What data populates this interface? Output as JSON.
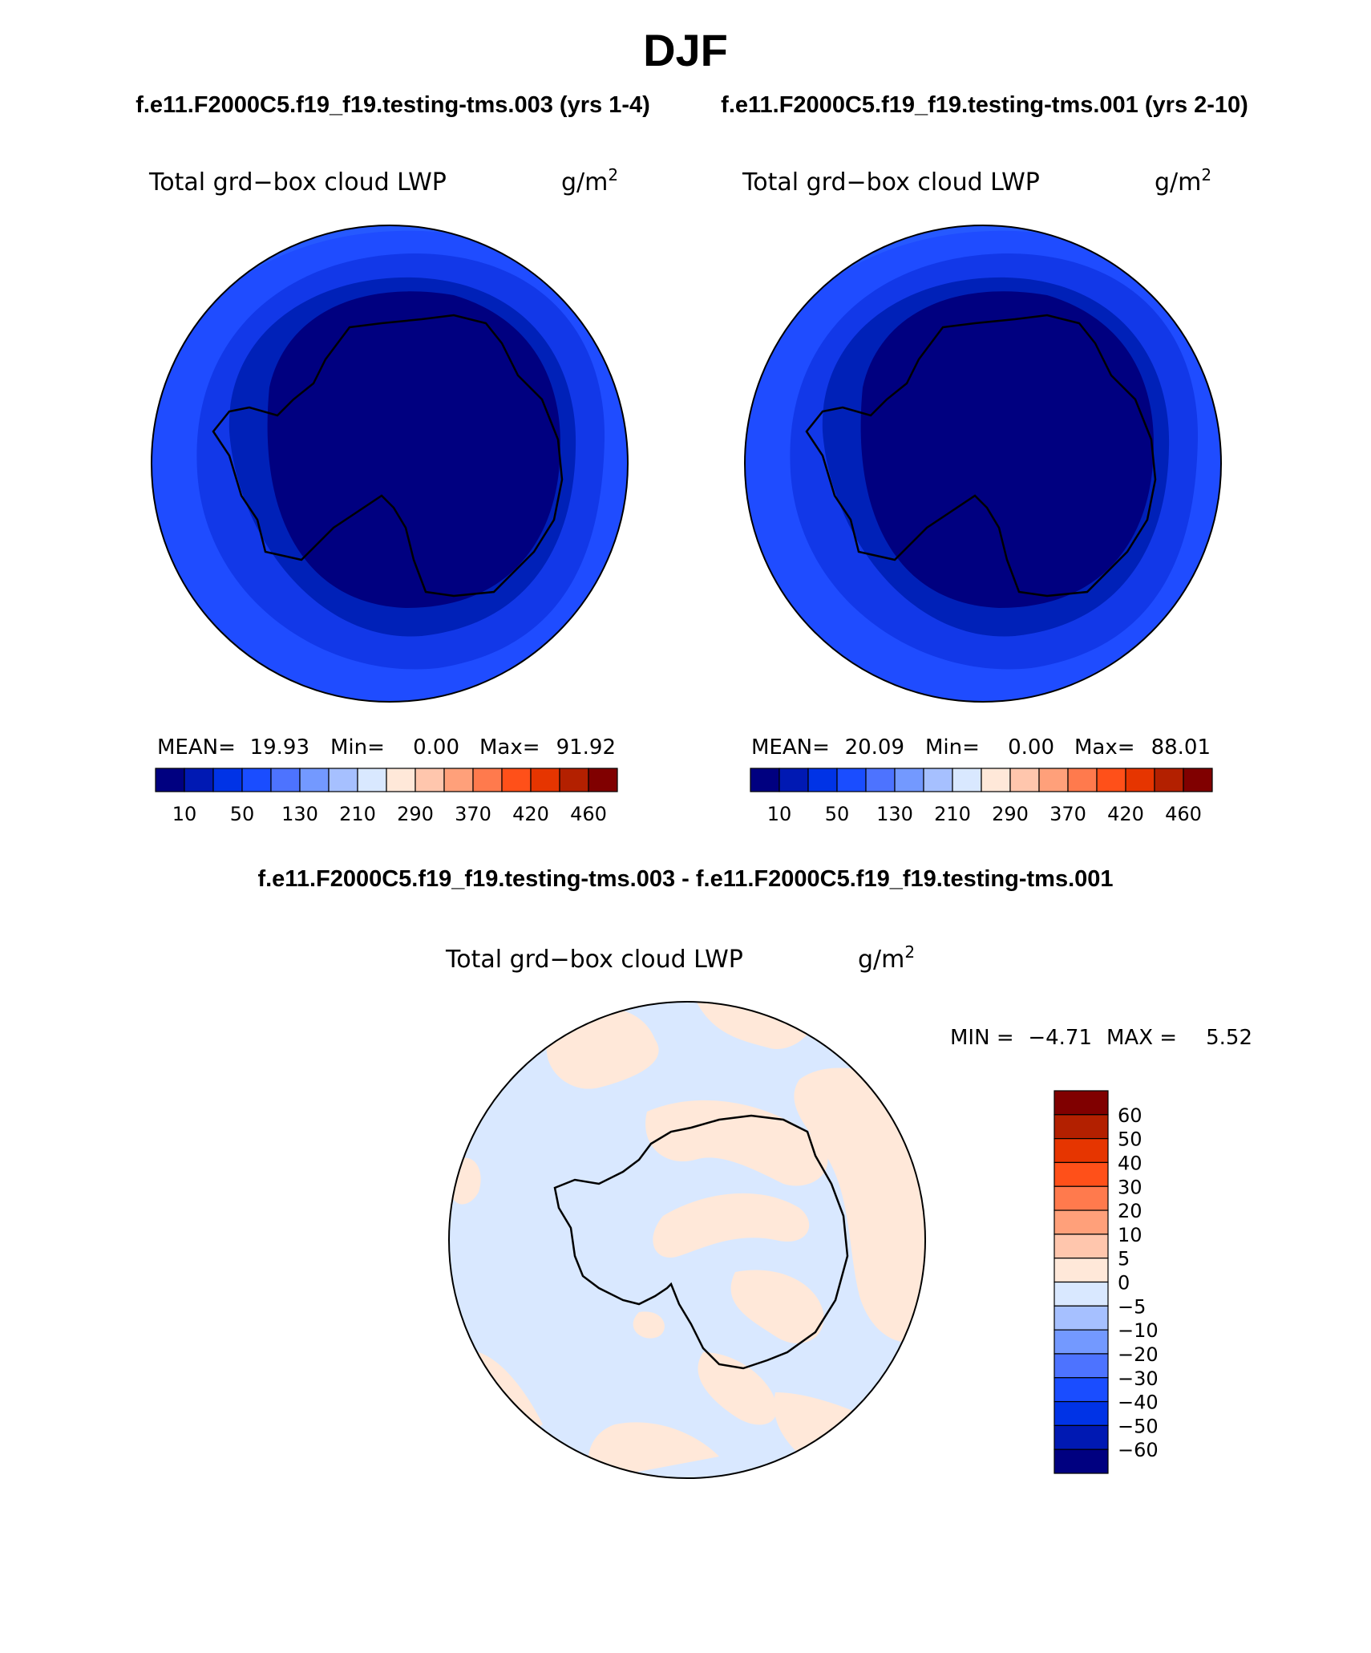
{
  "season": "DJF",
  "case_labels": {
    "left": "f.e11.F2000C5.f19_f19.testing-tms.003 (yrs 1-4)",
    "right": "f.e11.F2000C5.f19_f19.testing-tms.001 (yrs 2-10)",
    "difference": "f.e11.F2000C5.f19_f19.testing-tms.003 - f.e11.F2000C5.f19_f19.testing-tms.001"
  },
  "variable": "Total grd−box cloud LWP",
  "units": "g/m",
  "units_exponent": "2",
  "panels": [
    {
      "mean_label": "MEAN=",
      "mean": "19.93",
      "min_label": "Min=",
      "min": "0.00",
      "max_label": "Max=",
      "max": "91.92"
    },
    {
      "mean_label": "MEAN=",
      "mean": "20.09",
      "min_label": "Min=",
      "min": "0.00",
      "max_label": "Max=",
      "max": "88.01"
    }
  ],
  "diff_stats": {
    "min_label": "MIN =",
    "min": "−4.71",
    "max_label": "MAX =",
    "max": "5.52"
  },
  "abs_colorbar": {
    "colors": [
      "#000080",
      "#0019b3",
      "#0033e6",
      "#1a4dff",
      "#4d73ff",
      "#7399ff",
      "#a6c0ff",
      "#d9e8ff",
      "#ffe8d9",
      "#ffc6ad",
      "#ffa07a",
      "#ff7a4d",
      "#ff5019",
      "#e63500",
      "#b32000",
      "#800000"
    ],
    "tick_labels": [
      "10",
      "50",
      "130",
      "210",
      "290",
      "370",
      "420",
      "460"
    ]
  },
  "diff_colorbar": {
    "colors": [
      "#800000",
      "#b32000",
      "#e63500",
      "#ff5019",
      "#ff7a4d",
      "#ffa07a",
      "#ffc6ad",
      "#ffe8d9",
      "#d9e8ff",
      "#a6c0ff",
      "#7399ff",
      "#4d73ff",
      "#1a4dff",
      "#0033e6",
      "#0019b3",
      "#000080"
    ],
    "tick_labels": [
      "60",
      "50",
      "40",
      "30",
      "20",
      "10",
      "5",
      "0",
      "−5",
      "−10",
      "−20",
      "−30",
      "−40",
      "−50",
      "−60"
    ]
  },
  "map_colors": {
    "outer": "#1f4cff",
    "ring2": "#1238e8",
    "ring3": "#0021b8",
    "inner": "#000080",
    "diff_neg": "#d9e8ff",
    "diff_pos": "#ffe8d9"
  }
}
